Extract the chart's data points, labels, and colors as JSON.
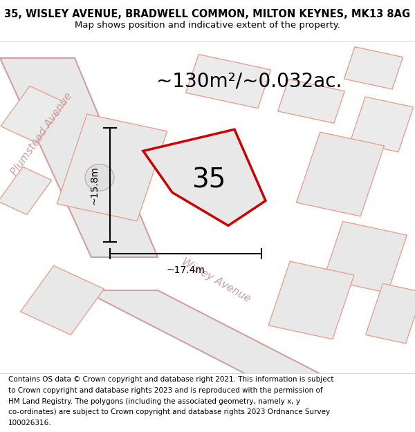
{
  "title_line1": "35, WISLEY AVENUE, BRADWELL COMMON, MILTON KEYNES, MK13 8AG",
  "title_line2": "Map shows position and indicative extent of the property.",
  "area_text": "~130m²/~0.032ac.",
  "number_label": "35",
  "dim_vertical": "~15.8m",
  "dim_horizontal": "~17.4m",
  "road_label_1": "Plumstead Avenue",
  "road_label_2": "Wisley Avenue",
  "copyright_lines": [
    "Contains OS data © Crown copyright and database right 2021. This information is subject",
    "to Crown copyright and database rights 2023 and is reproduced with the permission of",
    "HM Land Registry. The polygons (including the associated geometry, namely x, y",
    "co-ordinates) are subject to Crown copyright and database rights 2023 Ordnance Survey",
    "100026316."
  ],
  "bg_color": "#f2f2f2",
  "property_outline_color": "#cc0000",
  "road_fill": "#e8e8e8",
  "road_edge": "#d0a0a0",
  "building_fill": "#ebebeb",
  "building_edge": "#e8a090",
  "dim_color": "#111111",
  "title_fontsize": 10.5,
  "subtitle_fontsize": 9.5,
  "area_fontsize": 20,
  "number_fontsize": 28,
  "dim_fontsize": 10,
  "road_fontsize": 11,
  "copyright_fontsize": 7.5,
  "figsize": [
    6.0,
    6.25
  ],
  "dpi": 100
}
